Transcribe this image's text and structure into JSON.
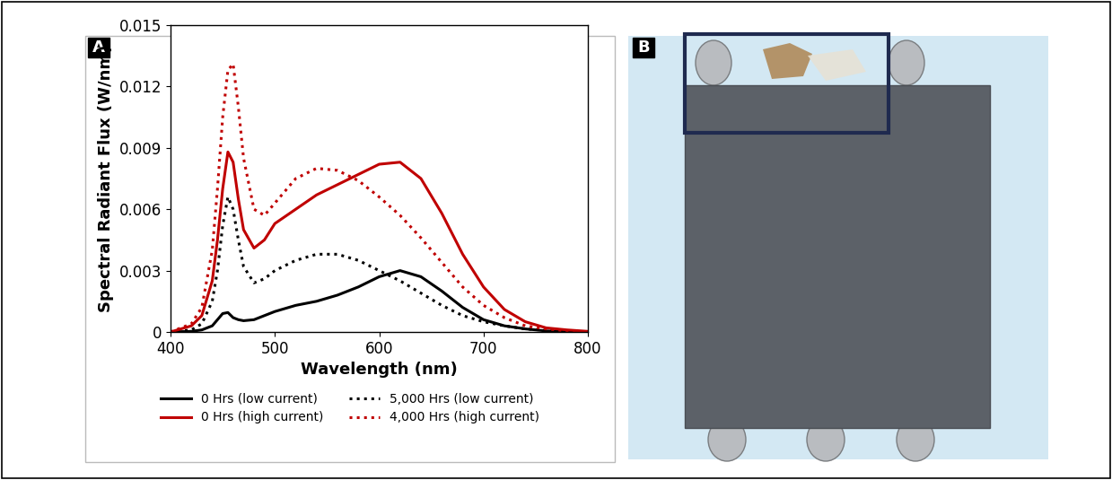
{
  "panel_labels": [
    "A",
    "B"
  ],
  "chart_data": {
    "type": "line",
    "x_label": "Wavelength (nm)",
    "y_label": "Spectral Radiant Flux (W/nm)",
    "xlim": [
      400,
      800
    ],
    "xticks": [
      400,
      500,
      600,
      700,
      800
    ],
    "ylim": [
      0,
      0.015
    ],
    "yticks": [
      0,
      0.003,
      0.006,
      0.009,
      0.012,
      0.015
    ],
    "grid": false,
    "legend": "bottom",
    "x": [
      400,
      420,
      430,
      440,
      445,
      450,
      455,
      460,
      465,
      470,
      480,
      490,
      500,
      520,
      540,
      560,
      580,
      600,
      620,
      640,
      660,
      680,
      700,
      720,
      740,
      760,
      780,
      800
    ],
    "series": [
      {
        "name": "0 Hrs (low current)",
        "color": "#000000",
        "line_style": "solid",
        "values": [
          0,
          3e-05,
          0.0001,
          0.0003,
          0.0006,
          0.0009,
          0.00095,
          0.0007,
          0.0006,
          0.00055,
          0.0006,
          0.0008,
          0.001,
          0.0013,
          0.0015,
          0.0018,
          0.0022,
          0.0027,
          0.003,
          0.0027,
          0.002,
          0.0012,
          0.0006,
          0.0003,
          0.00015,
          5e-05,
          2e-05,
          0
        ]
      },
      {
        "name": "5,000 Hrs (low current)",
        "color": "#000000",
        "line_style": "dotted",
        "values": [
          0,
          0.0001,
          0.0004,
          0.0015,
          0.003,
          0.0052,
          0.0066,
          0.006,
          0.0045,
          0.0032,
          0.0024,
          0.0026,
          0.003,
          0.0035,
          0.0038,
          0.0038,
          0.0035,
          0.003,
          0.0025,
          0.0019,
          0.0013,
          0.0008,
          0.0005,
          0.0003,
          0.00015,
          8e-05,
          3e-05,
          0
        ]
      },
      {
        "name": "0 Hrs (high current)",
        "color": "#c00000",
        "line_style": "solid",
        "values": [
          0,
          0.0003,
          0.0008,
          0.0025,
          0.0045,
          0.007,
          0.0088,
          0.0083,
          0.0065,
          0.005,
          0.0041,
          0.0045,
          0.0053,
          0.006,
          0.0067,
          0.0072,
          0.0077,
          0.0082,
          0.0083,
          0.0075,
          0.0058,
          0.0038,
          0.0022,
          0.0011,
          0.0005,
          0.0002,
          0.0001,
          3e-05
        ]
      },
      {
        "name": "4,000 Hrs (high current)",
        "color": "#c00000",
        "line_style": "dotted",
        "values": [
          0,
          0.0004,
          0.0012,
          0.004,
          0.007,
          0.0105,
          0.0128,
          0.0131,
          0.011,
          0.0085,
          0.006,
          0.0057,
          0.0063,
          0.0075,
          0.008,
          0.0079,
          0.0074,
          0.0066,
          0.0057,
          0.0046,
          0.0034,
          0.0022,
          0.0013,
          0.0007,
          0.0003,
          0.00015,
          5e-05,
          0
        ]
      }
    ]
  }
}
